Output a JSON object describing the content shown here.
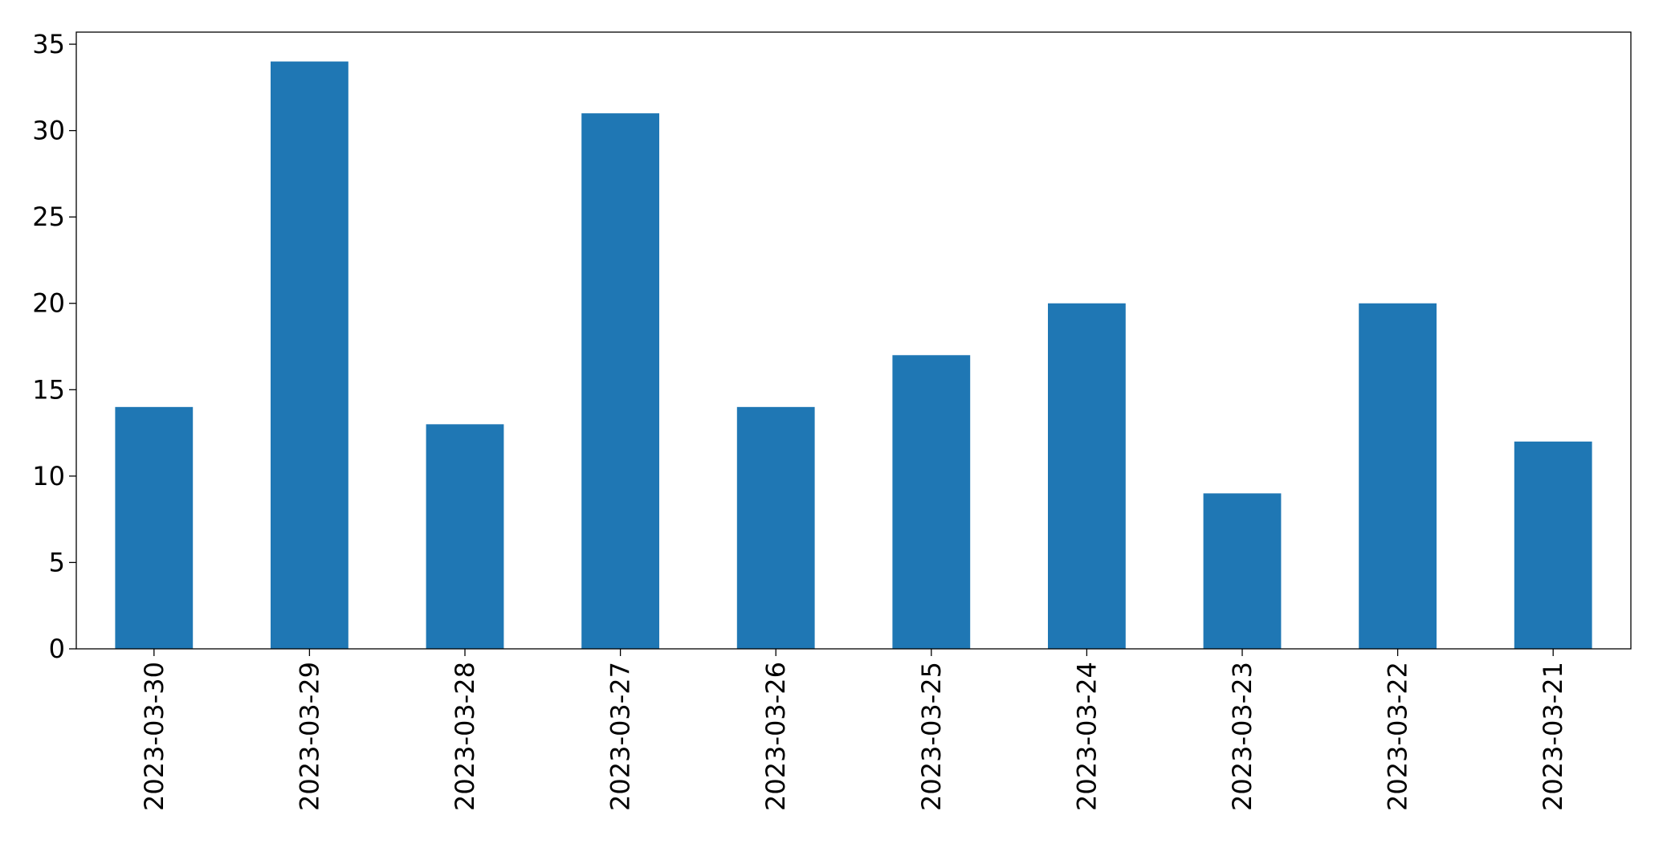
{
  "chart_data": {
    "type": "bar",
    "categories": [
      "2023-03-30",
      "2023-03-29",
      "2023-03-28",
      "2023-03-27",
      "2023-03-26",
      "2023-03-25",
      "2023-03-24",
      "2023-03-23",
      "2023-03-22",
      "2023-03-21"
    ],
    "values": [
      14,
      34,
      13,
      31,
      14,
      17,
      20,
      9,
      20,
      12
    ],
    "color": "#1f77b4",
    "ylim": [
      0,
      35.7
    ],
    "yticks": [
      0,
      5,
      10,
      15,
      20,
      25,
      30,
      35
    ],
    "grid": false
  }
}
